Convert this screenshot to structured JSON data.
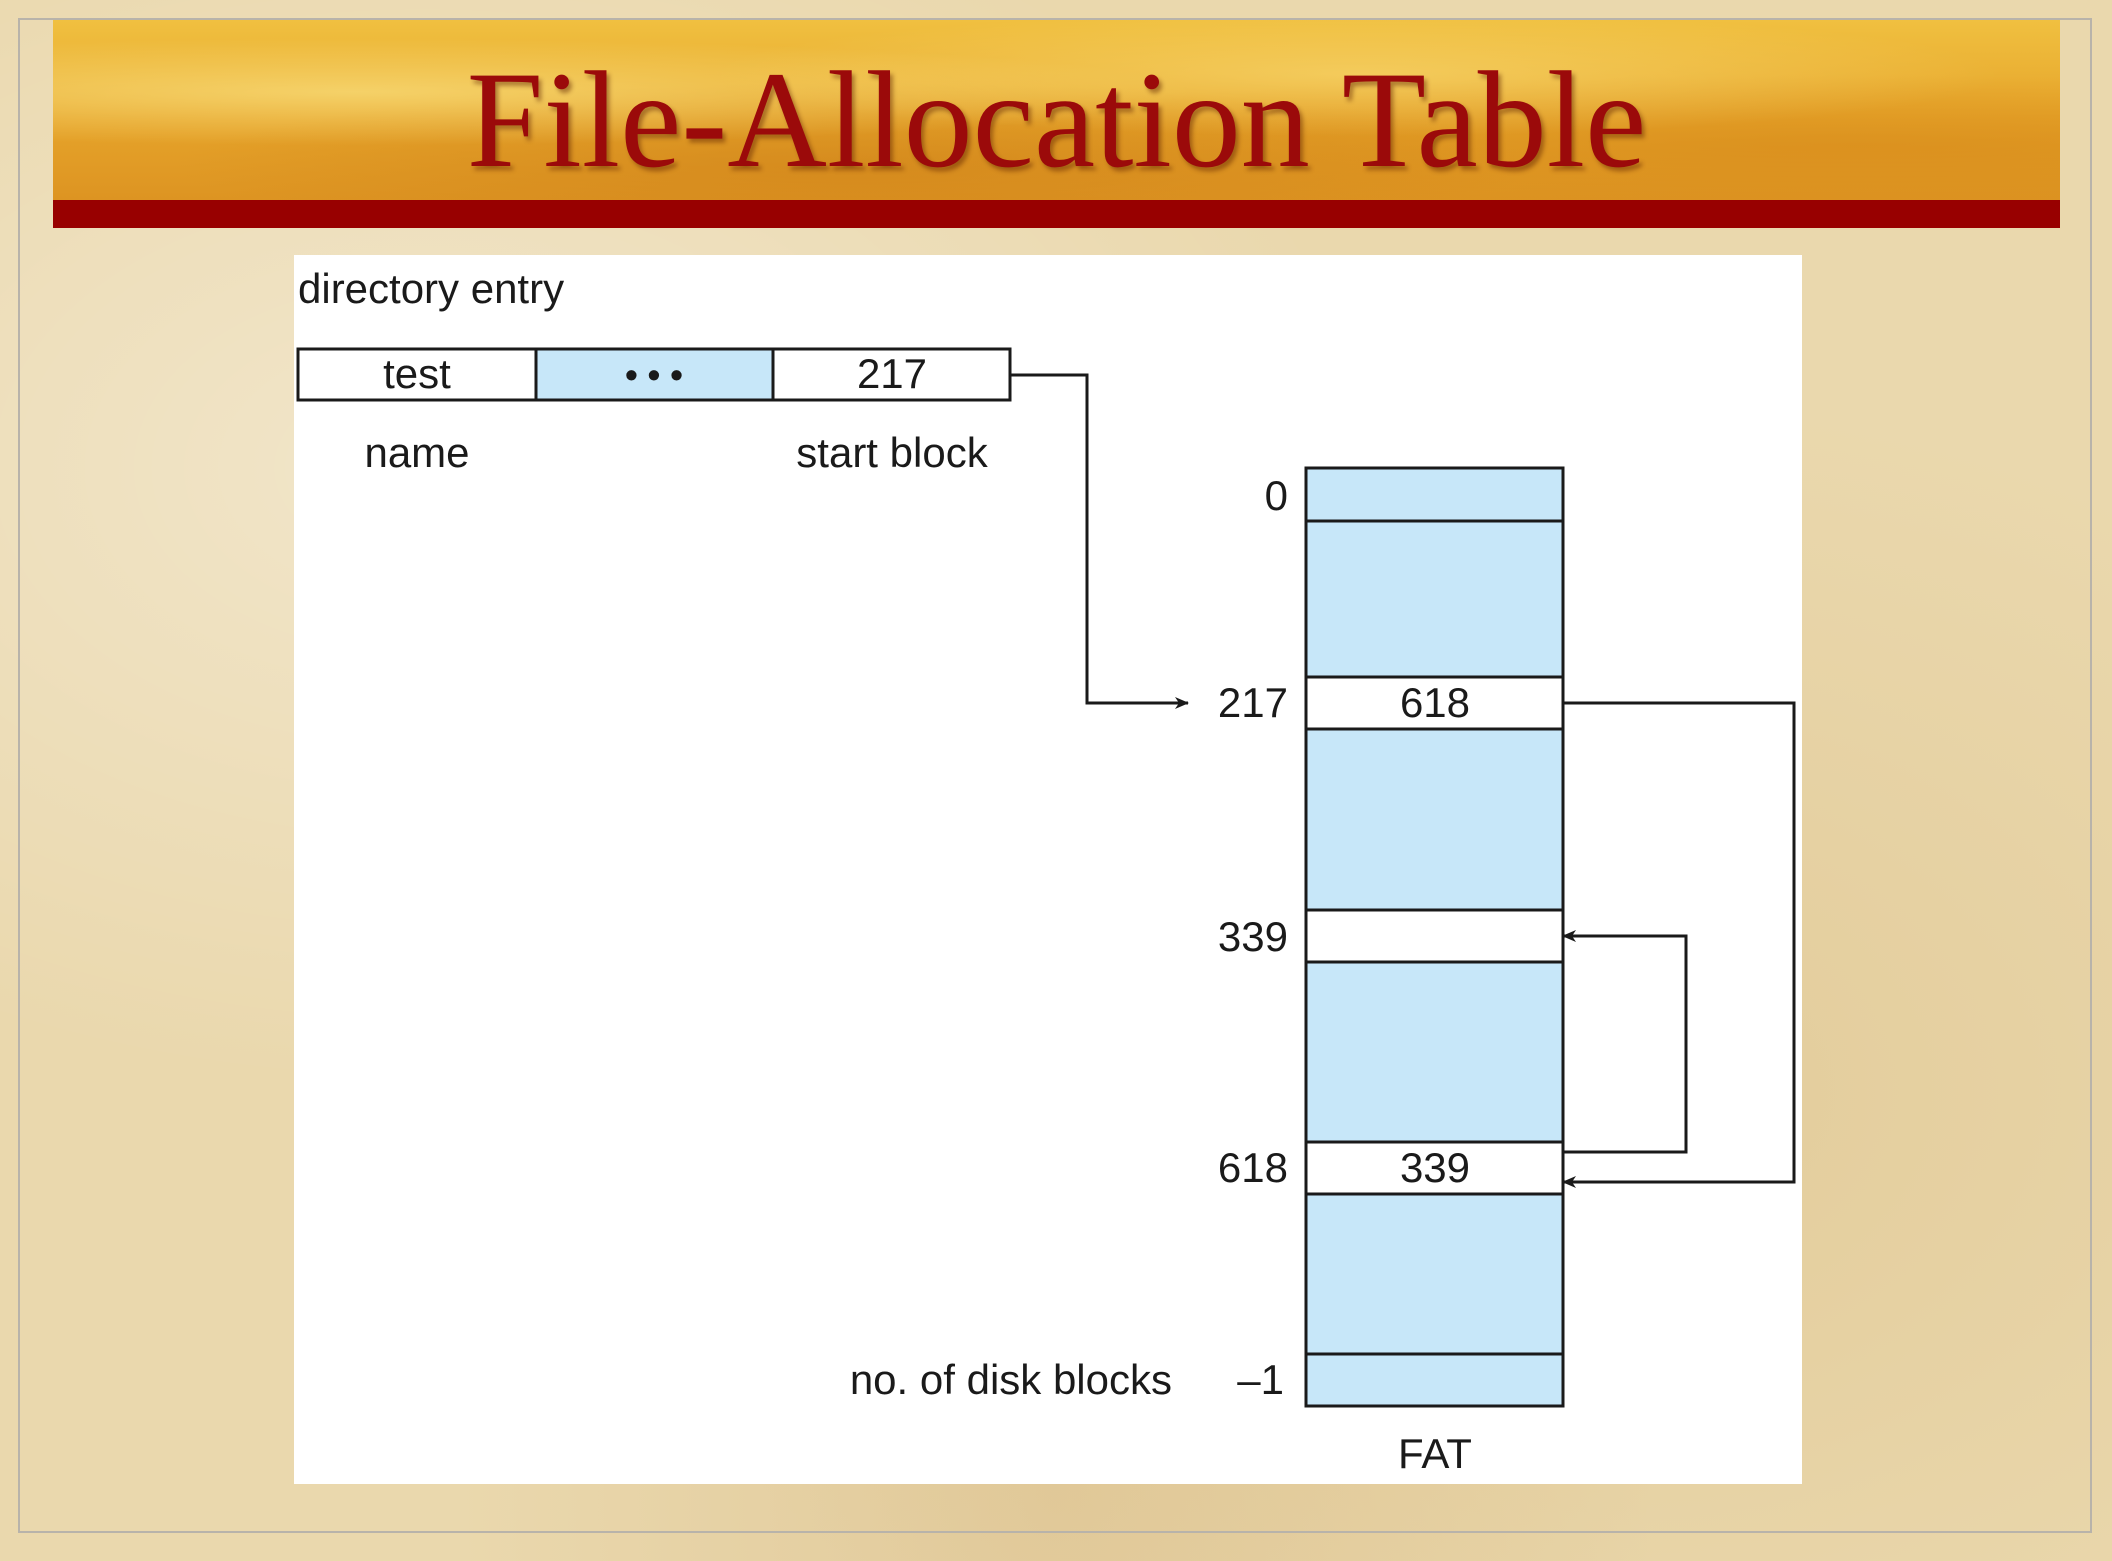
{
  "title": "File-Allocation Table",
  "directory": {
    "heading": "directory entry",
    "cells": [
      "test",
      "• • •",
      "217"
    ],
    "name_label": "name",
    "start_label": "start block"
  },
  "fat": {
    "caption": "FAT",
    "row_labels": {
      "r0": "0",
      "r217": "217",
      "r339": "339",
      "r618": "618",
      "r_last": "–1"
    },
    "cell_values": {
      "c217": "618",
      "c618": "339"
    },
    "disk_blocks_label": "no. of disk blocks"
  },
  "colors": {
    "title_red": "#9b0a0a",
    "banner_gold": "#e6a42a",
    "cell_blue": "#c7e7f9",
    "line": "#1a1a1a"
  }
}
